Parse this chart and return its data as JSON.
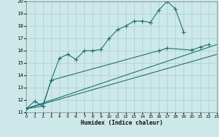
{
  "bg_color": "#cce8e8",
  "grid_color": "#aacccc",
  "line_color": "#1a6b6b",
  "xlabel": "Humidex (Indice chaleur)",
  "xlim": [
    -0.5,
    23.5
  ],
  "ylim": [
    11,
    20
  ],
  "line1_x": [
    0,
    1,
    2,
    3,
    4,
    5,
    6,
    7,
    8,
    9,
    10,
    11,
    12,
    13,
    14,
    15,
    16,
    17,
    18,
    19
  ],
  "line1_y": [
    11.3,
    11.9,
    11.5,
    13.6,
    15.4,
    15.7,
    15.3,
    16.0,
    16.0,
    16.1,
    17.0,
    17.7,
    18.0,
    18.4,
    18.4,
    18.3,
    19.3,
    20.0,
    19.4,
    17.5
  ],
  "line2_x": [
    0,
    2,
    3,
    16,
    17,
    20,
    21,
    22
  ],
  "line2_y": [
    11.3,
    11.5,
    13.6,
    16.0,
    16.2,
    16.05,
    16.3,
    16.5
  ],
  "line3_x": [
    0,
    23
  ],
  "line3_y": [
    11.3,
    15.7
  ],
  "line4_x": [
    0,
    23
  ],
  "line4_y": [
    11.3,
    16.5
  ]
}
